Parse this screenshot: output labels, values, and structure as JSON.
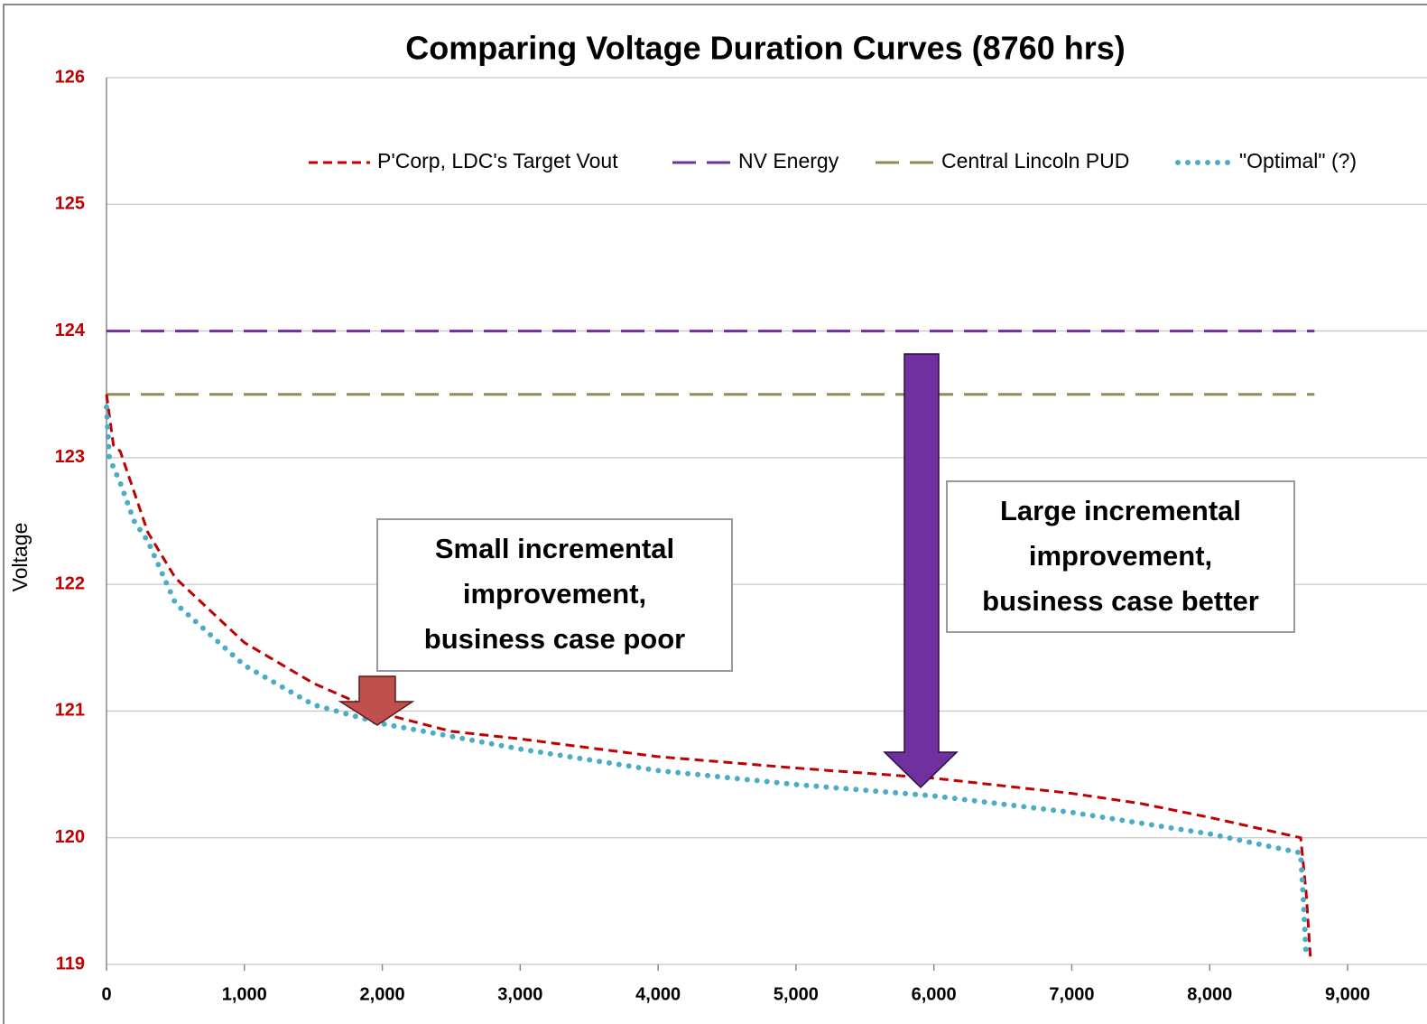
{
  "chart_data": {
    "type": "line",
    "title": "Comparing Voltage Duration Curves (8760 hrs)",
    "y_label": "Voltage",
    "xlim": [
      0,
      9000
    ],
    "ylim": [
      119,
      126
    ],
    "xticks": [
      0,
      {
        "value": 1000,
        "label": "1,000"
      },
      {
        "value": 2000,
        "label": "2,000"
      },
      {
        "value": 3000,
        "label": "3,000"
      },
      {
        "value": 4000,
        "label": "4,000"
      },
      {
        "value": 5000,
        "label": "5,000"
      },
      {
        "value": 6000,
        "label": "6,000"
      },
      {
        "value": 7000,
        "label": "7,000"
      },
      {
        "value": 8000,
        "label": "8,000"
      },
      {
        "value": 9000,
        "label": "9,000"
      }
    ],
    "yticks": [
      119,
      120,
      121,
      122,
      123,
      124,
      125,
      126
    ],
    "grid": true,
    "legend": "top",
    "series": [
      {
        "name": "P'Corp, LDC's Target Vout",
        "color": "#c00000",
        "style": "dashed",
        "x": [
          0,
          50,
          100,
          200,
          300,
          500,
          1000,
          1500,
          2000,
          2500,
          3000,
          4000,
          5000,
          6000,
          7000,
          7500,
          8000,
          8660,
          8700,
          8730
        ],
        "values": [
          123.5,
          123.1,
          123.05,
          122.73,
          122.41,
          122.05,
          121.54,
          121.22,
          120.98,
          120.84,
          120.78,
          120.64,
          120.55,
          120.47,
          120.35,
          120.27,
          120.16,
          120.0,
          119.56,
          119.06
        ]
      },
      {
        "name": "NV Energy",
        "color": "#7030a0",
        "style": "longdash",
        "x": [
          0,
          8760
        ],
        "values": [
          124,
          124
        ]
      },
      {
        "name": "Central Lincoln PUD",
        "color": "#948a54",
        "style": "longdash",
        "x": [
          0,
          8760
        ],
        "values": [
          123.5,
          123.5
        ]
      },
      {
        "name": "\"Optimal\" (?)",
        "color": "#4bacc6",
        "style": "dotted",
        "x": [
          0,
          20,
          100,
          200,
          300,
          500,
          1000,
          1500,
          2000,
          3000,
          4000,
          5000,
          6000,
          7000,
          8000,
          8660,
          8680,
          8700
        ],
        "values": [
          123.4,
          123.0,
          122.8,
          122.5,
          122.34,
          121.85,
          121.36,
          121.05,
          120.9,
          120.7,
          120.53,
          120.42,
          120.33,
          120.2,
          120.03,
          119.88,
          119.5,
          119.05
        ]
      }
    ],
    "annotations": [
      {
        "lines": [
          "Small incremental",
          "improvement,",
          "business case poor"
        ]
      },
      {
        "lines": [
          "Large incremental",
          "improvement,",
          "business case better"
        ]
      }
    ]
  }
}
